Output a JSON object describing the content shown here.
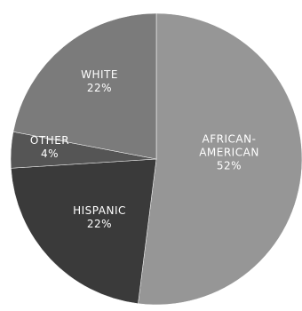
{
  "chart_data": {
    "type": "pie",
    "slices": [
      {
        "label": "AFRICAN-AMERICAN",
        "label_lines": [
          "AFRICAN-",
          "AMERICAN"
        ],
        "value": 52,
        "value_text": "52%",
        "color": "#969696"
      },
      {
        "label": "HISPANIC",
        "label_lines": [
          "HISPANIC"
        ],
        "value": 22,
        "value_text": "22%",
        "color": "#3a3a3a"
      },
      {
        "label": "OTHER",
        "label_lines": [
          "OTHER"
        ],
        "value": 4,
        "value_text": "4%",
        "color": "#555555"
      },
      {
        "label": "WHITE",
        "label_lines": [
          "WHITE"
        ],
        "value": 22,
        "value_text": "22%",
        "color": "#7b7b7b"
      }
    ]
  }
}
